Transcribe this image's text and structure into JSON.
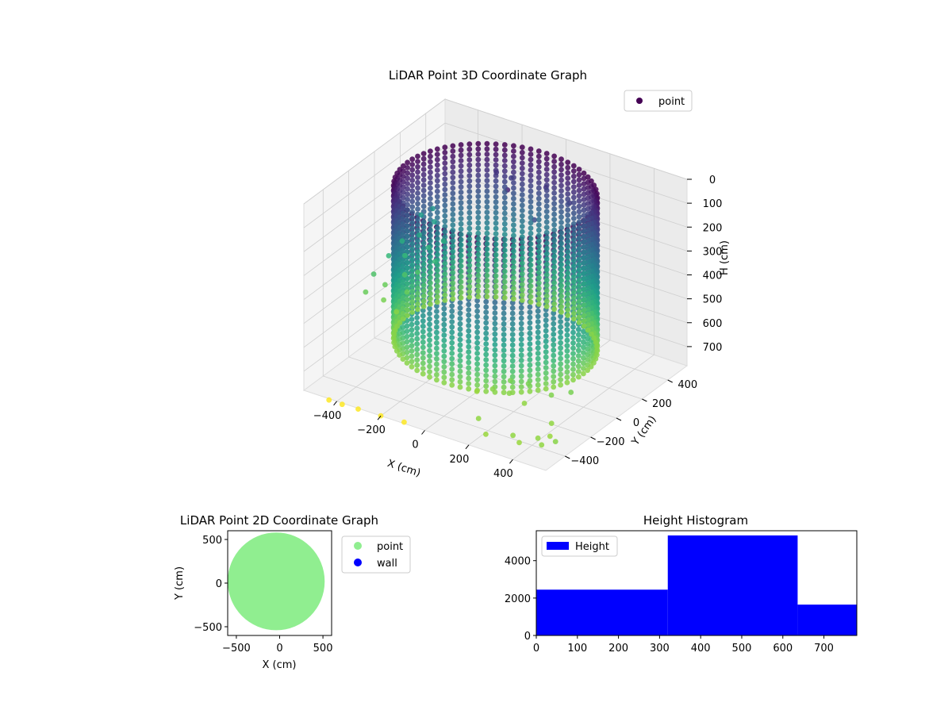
{
  "chart_data": [
    {
      "type": "scatter",
      "projection": "3d",
      "title": "LiDAR Point 3D Coordinate Graph",
      "xlabel": "X (cm)",
      "ylabel": "Y (cm)",
      "zlabel": "H (cm)",
      "xlim": [
        -550,
        550
      ],
      "ylim": [
        -550,
        550
      ],
      "zlim": [
        780,
        0
      ],
      "xticks": [
        -400,
        -200,
        0,
        200,
        400
      ],
      "yticks": [
        -400,
        -200,
        0,
        200,
        400
      ],
      "zticks": [
        0,
        100,
        200,
        300,
        400,
        500,
        600,
        700
      ],
      "xtick_labels": [
        "−400",
        "−200",
        "0",
        "200",
        "400"
      ],
      "ytick_labels": [
        "−400",
        "−200",
        "0",
        "200",
        "400"
      ],
      "ztick_labels": [
        "0",
        "100",
        "200",
        "300",
        "400",
        "500",
        "600",
        "700"
      ],
      "grid": true,
      "legend": {
        "position": "top-right",
        "entries": [
          {
            "label": "point",
            "color": "#440154"
          }
        ]
      },
      "colormap": "viridis",
      "series": [
        {
          "name": "point",
          "wall": {
            "radius": 400,
            "h_min": 0,
            "h_max": 640,
            "columns": 72,
            "rows": 30
          },
          "scattered_points": [
            {
              "x": -430,
              "y": -560,
              "h": 780
            },
            {
              "x": -370,
              "y": -560,
              "h": 780
            },
            {
              "x": -300,
              "y": -555,
              "h": 780
            },
            {
              "x": -200,
              "y": -550,
              "h": 780
            },
            {
              "x": -100,
              "y": -540,
              "h": 780
            },
            {
              "x": 180,
              "y": -330,
              "h": 640
            },
            {
              "x": 250,
              "y": -320,
              "h": 640
            },
            {
              "x": 330,
              "y": -340,
              "h": 650
            },
            {
              "x": 220,
              "y": -260,
              "h": 620
            },
            {
              "x": 290,
              "y": -240,
              "h": 620
            },
            {
              "x": 120,
              "y": -350,
              "h": 660
            },
            {
              "x": 400,
              "y": -250,
              "h": 630
            },
            {
              "x": 460,
              "y": -200,
              "h": 620
            },
            {
              "x": 500,
              "y": -420,
              "h": 650
            },
            {
              "x": 540,
              "y": -500,
              "h": 660
            },
            {
              "x": 520,
              "y": -560,
              "h": 650
            },
            {
              "x": 430,
              "y": -600,
              "h": 650
            },
            {
              "x": 560,
              "y": -600,
              "h": 650
            },
            {
              "x": 600,
              "y": -560,
              "h": 640
            },
            {
              "x": 470,
              "y": -620,
              "h": 660
            },
            {
              "x": 330,
              "y": -640,
              "h": 660
            },
            {
              "x": 250,
              "y": -560,
              "h": 650
            },
            {
              "x": -560,
              "y": 380,
              "h": 420
            },
            {
              "x": -520,
              "y": 300,
              "h": 460
            },
            {
              "x": -540,
              "y": 220,
              "h": 520
            },
            {
              "x": -500,
              "y": 150,
              "h": 560
            },
            {
              "x": -560,
              "y": 100,
              "h": 600
            },
            {
              "x": -520,
              "y": 20,
              "h": 620
            },
            {
              "x": -480,
              "y": 300,
              "h": 500
            },
            {
              "x": -470,
              "y": 200,
              "h": 560
            },
            {
              "x": -460,
              "y": 100,
              "h": 600
            },
            {
              "x": -450,
              "y": 0,
              "h": 640
            },
            {
              "x": -570,
              "y": 250,
              "h": 480
            },
            {
              "x": -590,
              "y": 180,
              "h": 520
            },
            {
              "x": -600,
              "y": 80,
              "h": 560
            },
            {
              "x": -590,
              "y": 0,
              "h": 600
            },
            {
              "x": -530,
              "y": 420,
              "h": 400
            },
            {
              "x": -500,
              "y": 380,
              "h": 430
            },
            {
              "x": -440,
              "y": 350,
              "h": 480
            },
            {
              "x": -420,
              "y": 250,
              "h": 520
            },
            {
              "x": -200,
              "y": 350,
              "h": 120
            },
            {
              "x": -150,
              "y": 380,
              "h": 140
            },
            {
              "x": 20,
              "y": 360,
              "h": 120
            },
            {
              "x": 150,
              "y": 320,
              "h": 130
            },
            {
              "x": -50,
              "y": 180,
              "h": 80
            },
            {
              "x": 60,
              "y": 200,
              "h": 180
            }
          ]
        }
      ]
    },
    {
      "type": "scatter",
      "title": "LiDAR Point 2D Coordinate Graph",
      "xlabel": "X (cm)",
      "ylabel": "Y (cm)",
      "xlim": [
        -600,
        600
      ],
      "ylim": [
        -600,
        600
      ],
      "xticks": [
        -500,
        0,
        500
      ],
      "yticks": [
        -500,
        0,
        500
      ],
      "xtick_labels": [
        "−500",
        "0",
        "500"
      ],
      "ytick_labels": [
        "−500",
        "0",
        "500"
      ],
      "legend": {
        "position": "outside-right",
        "entries": [
          {
            "label": "point",
            "color": "#90ee90"
          },
          {
            "label": "wall",
            "color": "#0000ff"
          }
        ]
      },
      "series": [
        {
          "name": "point",
          "color": "#90ee90",
          "shape": "filled-disc",
          "center": [
            -40,
            20
          ],
          "radius": 560
        },
        {
          "name": "wall",
          "color": "#0000ff",
          "points": []
        }
      ]
    },
    {
      "type": "bar",
      "histogram": true,
      "title": "Height Histogram",
      "xlim": [
        0,
        780
      ],
      "ylim": [
        0,
        5600
      ],
      "xticks": [
        0,
        100,
        200,
        300,
        400,
        500,
        600,
        700
      ],
      "yticks": [
        0,
        2000,
        4000
      ],
      "legend": {
        "position": "top-left",
        "entries": [
          {
            "label": "Height",
            "color": "#0000ff"
          }
        ]
      },
      "bins": [
        {
          "start": 0,
          "end": 320,
          "count": 2450
        },
        {
          "start": 320,
          "end": 636,
          "count": 5350
        },
        {
          "start": 636,
          "end": 780,
          "count": 1650
        }
      ],
      "color": "#0000ff"
    }
  ]
}
